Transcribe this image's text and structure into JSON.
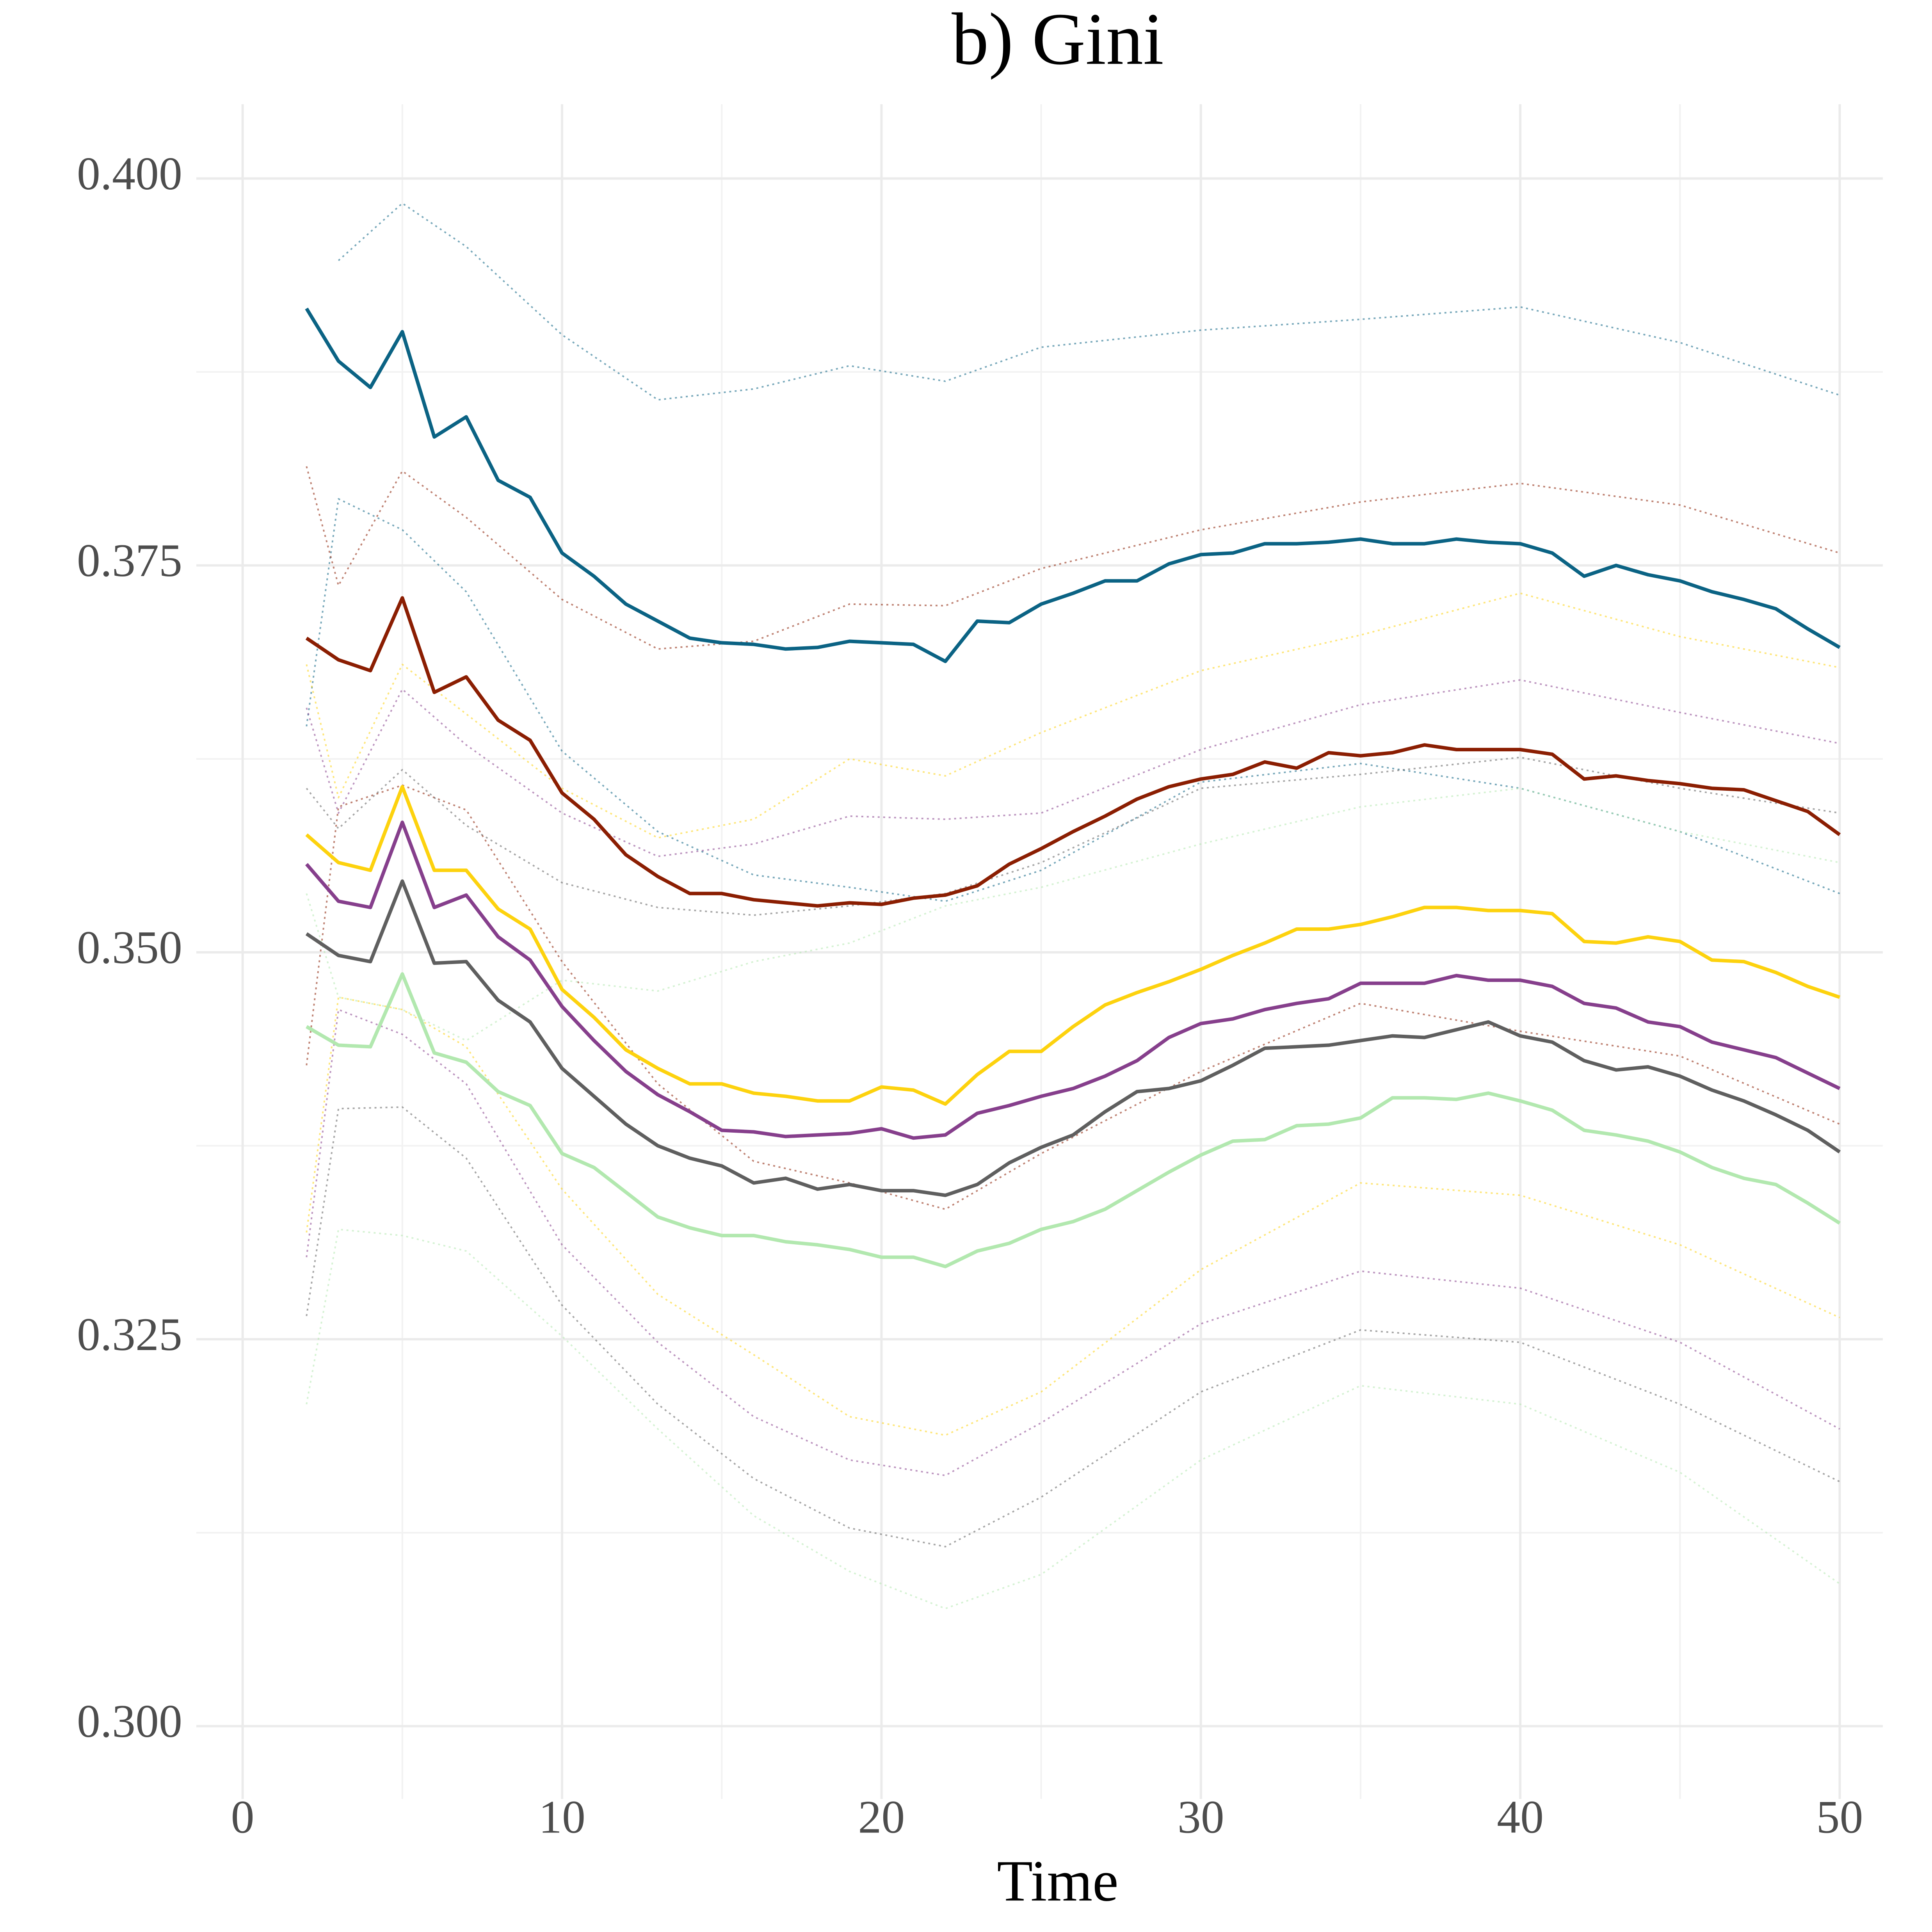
{
  "chart_data": {
    "type": "line",
    "title": "b) Gini",
    "xlabel": "Time",
    "xlim": [
      -1.45,
      51.35
    ],
    "ylim": [
      0.2953,
      0.4048
    ],
    "xticks": [
      0,
      10,
      20,
      30,
      40,
      50
    ],
    "yticks": [
      {
        "value": 0.3,
        "label": "0.300"
      },
      {
        "value": 0.325,
        "label": "0.325"
      },
      {
        "value": 0.35,
        "label": "0.350"
      },
      {
        "value": 0.375,
        "label": "0.375"
      },
      {
        "value": 0.4,
        "label": "0.400"
      }
    ],
    "xminor_ticks": [
      5,
      15,
      25,
      35,
      45
    ],
    "yminor_ticks": [
      0.3125,
      0.3375,
      0.3625,
      0.3875
    ],
    "grid": true,
    "x": [
      2,
      3,
      4,
      5,
      6,
      7,
      8,
      9,
      10,
      11,
      12,
      13,
      14,
      15,
      16,
      17,
      18,
      19,
      20,
      21,
      22,
      23,
      24,
      25,
      26,
      27,
      28,
      29,
      30,
      31,
      32,
      33,
      34,
      35,
      36,
      37,
      38,
      39,
      40,
      41,
      42,
      43,
      44,
      45,
      46,
      47,
      48,
      49,
      50
    ],
    "series": [
      {
        "color": "#0b6384",
        "linestyle": "solid",
        "values": [
          0.3916,
          0.3882,
          0.3865,
          0.3901,
          0.3833,
          0.3846,
          0.3805,
          0.3794,
          0.3758,
          0.3743,
          0.3725,
          0.3714,
          0.3703,
          0.37,
          0.3699,
          0.3696,
          0.3697,
          0.3701,
          0.37,
          0.3699,
          0.3688,
          0.3714,
          0.3713,
          0.3725,
          0.3732,
          0.374,
          0.374,
          0.3751,
          0.3757,
          0.3758,
          0.3764,
          0.3764,
          0.3765,
          0.3767,
          0.3764,
          0.3764,
          0.3767,
          0.3765,
          0.3764,
          0.3758,
          0.3743,
          0.375,
          0.3744,
          0.374,
          0.3733,
          0.3728,
          0.3722,
          0.3709,
          0.3697
        ]
      },
      {
        "color": "#8b1e02",
        "linestyle": "solid",
        "values": [
          0.3703,
          0.3689,
          0.3682,
          0.3729,
          0.3668,
          0.3678,
          0.365,
          0.3637,
          0.3603,
          0.3586,
          0.3563,
          0.3549,
          0.3538,
          0.3538,
          0.3534,
          0.3532,
          0.353,
          0.3532,
          0.3531,
          0.3535,
          0.3537,
          0.3543,
          0.3557,
          0.3567,
          0.3578,
          0.3588,
          0.3599,
          0.3607,
          0.3612,
          0.3615,
          0.3623,
          0.3619,
          0.3629,
          0.3627,
          0.3629,
          0.3634,
          0.3631,
          0.3631,
          0.3631,
          0.3628,
          0.3612,
          0.3614,
          0.3611,
          0.3609,
          0.3606,
          0.3605,
          0.3598,
          0.3591,
          0.3576
        ]
      },
      {
        "color": "#fdd20e",
        "linestyle": "solid",
        "values": [
          0.3576,
          0.3558,
          0.3553,
          0.3607,
          0.3553,
          0.3553,
          0.3528,
          0.3515,
          0.3476,
          0.3458,
          0.3437,
          0.3425,
          0.3415,
          0.3415,
          0.3409,
          0.3407,
          0.3404,
          0.3404,
          0.3413,
          0.3411,
          0.3402,
          0.3421,
          0.3436,
          0.3436,
          0.3452,
          0.3466,
          0.3474,
          0.3481,
          0.3489,
          0.3498,
          0.3506,
          0.3515,
          0.3515,
          0.3518,
          0.3523,
          0.3529,
          0.3529,
          0.3527,
          0.3527,
          0.3525,
          0.3507,
          0.3506,
          0.351,
          0.3507,
          0.3495,
          0.3494,
          0.3487,
          0.3478,
          0.3471
        ]
      },
      {
        "color": "#863f8c",
        "linestyle": "solid",
        "values": [
          0.3557,
          0.3533,
          0.3529,
          0.3584,
          0.3529,
          0.3537,
          0.351,
          0.3495,
          0.3465,
          0.3443,
          0.3423,
          0.3408,
          0.3397,
          0.3385,
          0.3384,
          0.3381,
          0.3382,
          0.3383,
          0.3386,
          0.338,
          0.3382,
          0.3396,
          0.3401,
          0.3407,
          0.3412,
          0.342,
          0.343,
          0.3445,
          0.3454,
          0.3457,
          0.3463,
          0.3467,
          0.347,
          0.348,
          0.348,
          0.348,
          0.3485,
          0.3482,
          0.3482,
          0.3478,
          0.3467,
          0.3464,
          0.3455,
          0.3452,
          0.3442,
          0.3437,
          0.3432,
          0.3422,
          0.3412
        ]
      },
      {
        "color": "#5f5f5f",
        "linestyle": "solid",
        "values": [
          0.3512,
          0.3498,
          0.3494,
          0.3546,
          0.3493,
          0.3494,
          0.3469,
          0.3455,
          0.3425,
          0.3407,
          0.3389,
          0.3375,
          0.3367,
          0.3362,
          0.3351,
          0.3354,
          0.3347,
          0.335,
          0.3346,
          0.3346,
          0.3343,
          0.335,
          0.3364,
          0.3374,
          0.3382,
          0.3397,
          0.341,
          0.3412,
          0.3417,
          0.3427,
          0.3438,
          0.3439,
          0.344,
          0.3443,
          0.3446,
          0.3445,
          0.345,
          0.3455,
          0.3446,
          0.3442,
          0.343,
          0.3424,
          0.3426,
          0.342,
          0.3411,
          0.3404,
          0.3395,
          0.3385,
          0.3371
        ]
      },
      {
        "color": "#b2e8af",
        "linestyle": "solid",
        "values": [
          0.3452,
          0.344,
          0.3439,
          0.3486,
          0.3435,
          0.3429,
          0.341,
          0.3401,
          0.337,
          0.3361,
          0.3345,
          0.3329,
          0.3322,
          0.3317,
          0.3317,
          0.3313,
          0.3311,
          0.3308,
          0.3303,
          0.3303,
          0.3297,
          0.3307,
          0.3312,
          0.3321,
          0.3326,
          0.3334,
          0.3346,
          0.3358,
          0.3369,
          0.3378,
          0.3379,
          0.3388,
          0.3389,
          0.3393,
          0.3406,
          0.3406,
          0.3405,
          0.3409,
          0.3404,
          0.3398,
          0.3385,
          0.3382,
          0.3378,
          0.3371,
          0.3361,
          0.3354,
          0.335,
          0.3338,
          0.3325
        ]
      },
      {
        "color": "#0b6384",
        "linestyle": "dotted",
        "x": [
          3,
          5,
          7,
          10,
          13,
          16,
          19,
          22,
          25,
          30,
          35,
          40,
          45,
          50
        ],
        "values": [
          0.3947,
          0.3984,
          0.3956,
          0.3899,
          0.3857,
          0.3864,
          0.3879,
          0.3869,
          0.3891,
          0.3902,
          0.3909,
          0.3917,
          0.3894,
          0.386
        ]
      },
      {
        "color": "#0b6384",
        "linestyle": "dotted",
        "x": [
          2,
          3,
          5,
          7,
          10,
          13,
          16,
          19,
          22,
          25,
          30,
          35,
          40,
          45,
          50
        ],
        "values": [
          0.3646,
          0.3793,
          0.3773,
          0.3733,
          0.363,
          0.3578,
          0.355,
          0.3542,
          0.3533,
          0.3553,
          0.361,
          0.3622,
          0.3606,
          0.3578,
          0.3538
        ]
      },
      {
        "color": "#8b1e02",
        "linestyle": "dotted",
        "x": [
          2,
          3,
          5,
          7,
          10,
          13,
          16,
          19,
          22,
          25,
          30,
          35,
          40,
          45,
          50
        ],
        "values": [
          0.3814,
          0.3737,
          0.3811,
          0.3781,
          0.3728,
          0.3696,
          0.3701,
          0.3725,
          0.3724,
          0.3748,
          0.3773,
          0.3791,
          0.3803,
          0.3789,
          0.3758
        ]
      },
      {
        "color": "#8b1e02",
        "linestyle": "dotted",
        "x": [
          2,
          3,
          5,
          7,
          10,
          13,
          16,
          19,
          22,
          25,
          30,
          35,
          40,
          45,
          50
        ],
        "values": [
          0.3427,
          0.3594,
          0.3608,
          0.3592,
          0.3494,
          0.3415,
          0.3365,
          0.3351,
          0.3334,
          0.337,
          0.3423,
          0.3467,
          0.3449,
          0.3433,
          0.3389
        ]
      },
      {
        "color": "#fdd20e",
        "linestyle": "dotted",
        "x": [
          2,
          3,
          5,
          7,
          10,
          13,
          16,
          19,
          22,
          25,
          30,
          35,
          40,
          45,
          50
        ],
        "values": [
          0.3686,
          0.36,
          0.3686,
          0.3654,
          0.3606,
          0.3574,
          0.3586,
          0.3625,
          0.3614,
          0.3642,
          0.3682,
          0.3705,
          0.3732,
          0.3704,
          0.3684
        ]
      },
      {
        "color": "#fdd20e",
        "linestyle": "dotted",
        "x": [
          2,
          3,
          5,
          7,
          10,
          13,
          16,
          19,
          22,
          25,
          30,
          35,
          40,
          45,
          50
        ],
        "values": [
          0.3319,
          0.3471,
          0.3463,
          0.3439,
          0.3347,
          0.3279,
          0.324,
          0.32,
          0.3188,
          0.3216,
          0.3295,
          0.3351,
          0.3343,
          0.3311,
          0.3264
        ]
      },
      {
        "color": "#863f8c",
        "linestyle": "dotted",
        "x": [
          2,
          3,
          5,
          7,
          10,
          13,
          16,
          19,
          22,
          25,
          30,
          35,
          40,
          45,
          50
        ],
        "values": [
          0.3658,
          0.359,
          0.367,
          0.3634,
          0.359,
          0.3562,
          0.357,
          0.3588,
          0.3586,
          0.359,
          0.3631,
          0.366,
          0.3676,
          0.3655,
          0.3635
        ]
      },
      {
        "color": "#863f8c",
        "linestyle": "dotted",
        "x": [
          2,
          3,
          5,
          7,
          10,
          13,
          16,
          19,
          22,
          25,
          30,
          35,
          40,
          45,
          50
        ],
        "values": [
          0.3303,
          0.3463,
          0.3447,
          0.3415,
          0.3311,
          0.3248,
          0.32,
          0.3172,
          0.3162,
          0.3196,
          0.326,
          0.3294,
          0.3283,
          0.3248,
          0.3192
        ]
      },
      {
        "color": "#5f5f5f",
        "linestyle": "dotted",
        "x": [
          2,
          3,
          5,
          7,
          10,
          13,
          16,
          19,
          22,
          25,
          30,
          35,
          40,
          45,
          50
        ],
        "values": [
          0.3606,
          0.358,
          0.3618,
          0.3582,
          0.3545,
          0.3529,
          0.3524,
          0.353,
          0.3538,
          0.3558,
          0.3606,
          0.3615,
          0.3626,
          0.3606,
          0.359
        ]
      },
      {
        "color": "#5f5f5f",
        "linestyle": "dotted",
        "x": [
          2,
          3,
          5,
          7,
          10,
          13,
          16,
          19,
          22,
          25,
          30,
          35,
          40,
          45,
          50
        ],
        "values": [
          0.3265,
          0.3399,
          0.34,
          0.3367,
          0.3272,
          0.3208,
          0.316,
          0.3128,
          0.3116,
          0.3148,
          0.3216,
          0.3256,
          0.3248,
          0.3208,
          0.3158
        ]
      },
      {
        "color": "#b2e8af",
        "linestyle": "dotted",
        "x": [
          2,
          3,
          5,
          7,
          10,
          13,
          16,
          19,
          22,
          25,
          30,
          35,
          40,
          45,
          50
        ],
        "values": [
          0.3538,
          0.3471,
          0.3463,
          0.3443,
          0.3482,
          0.3475,
          0.3494,
          0.3506,
          0.353,
          0.3542,
          0.357,
          0.3594,
          0.3606,
          0.3578,
          0.3558
        ]
      },
      {
        "color": "#b2e8af",
        "linestyle": "dotted",
        "x": [
          2,
          3,
          5,
          7,
          10,
          13,
          16,
          19,
          22,
          25,
          30,
          35,
          40,
          45,
          50
        ],
        "values": [
          0.3208,
          0.3321,
          0.3317,
          0.3307,
          0.3252,
          0.3192,
          0.3136,
          0.31,
          0.3076,
          0.3098,
          0.3172,
          0.322,
          0.3208,
          0.3164,
          0.3092
        ]
      }
    ]
  }
}
